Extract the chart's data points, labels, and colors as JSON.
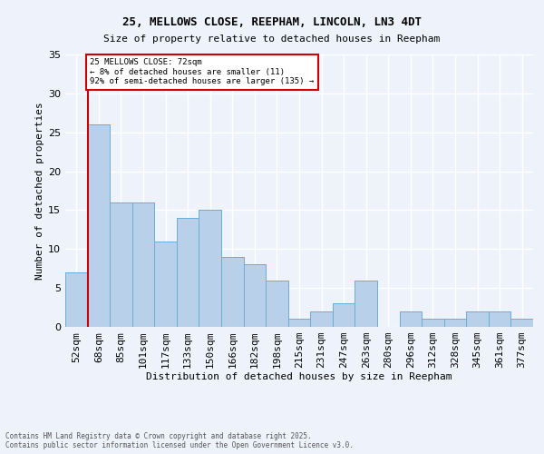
{
  "title_line1": "25, MELLOWS CLOSE, REEPHAM, LINCOLN, LN3 4DT",
  "title_line2": "Size of property relative to detached houses in Reepham",
  "xlabel": "Distribution of detached houses by size in Reepham",
  "ylabel": "Number of detached properties",
  "footnote_line1": "Contains HM Land Registry data © Crown copyright and database right 2025.",
  "footnote_line2": "Contains public sector information licensed under the Open Government Licence v3.0.",
  "bin_labels": [
    "52sqm",
    "68sqm",
    "85sqm",
    "101sqm",
    "117sqm",
    "133sqm",
    "150sqm",
    "166sqm",
    "182sqm",
    "198sqm",
    "215sqm",
    "231sqm",
    "247sqm",
    "263sqm",
    "280sqm",
    "296sqm",
    "312sqm",
    "328sqm",
    "345sqm",
    "361sqm",
    "377sqm"
  ],
  "bar_values": [
    7,
    26,
    16,
    16,
    11,
    14,
    15,
    9,
    8,
    6,
    1,
    2,
    3,
    6,
    0,
    2,
    1,
    1,
    2,
    2,
    1
  ],
  "bar_color": "#b8d0ea",
  "bar_edge_color": "#6baed6",
  "background_color": "#eef2fb",
  "grid_color": "#ffffff",
  "annotation_text": "25 MELLOWS CLOSE: 72sqm\n← 8% of detached houses are smaller (11)\n92% of semi-detached houses are larger (135) →",
  "annotation_box_color": "#ffffff",
  "annotation_box_edge": "#cc0000",
  "vline_color": "#cc0000",
  "ylim": [
    0,
    35
  ],
  "yticks": [
    0,
    5,
    10,
    15,
    20,
    25,
    30,
    35
  ]
}
